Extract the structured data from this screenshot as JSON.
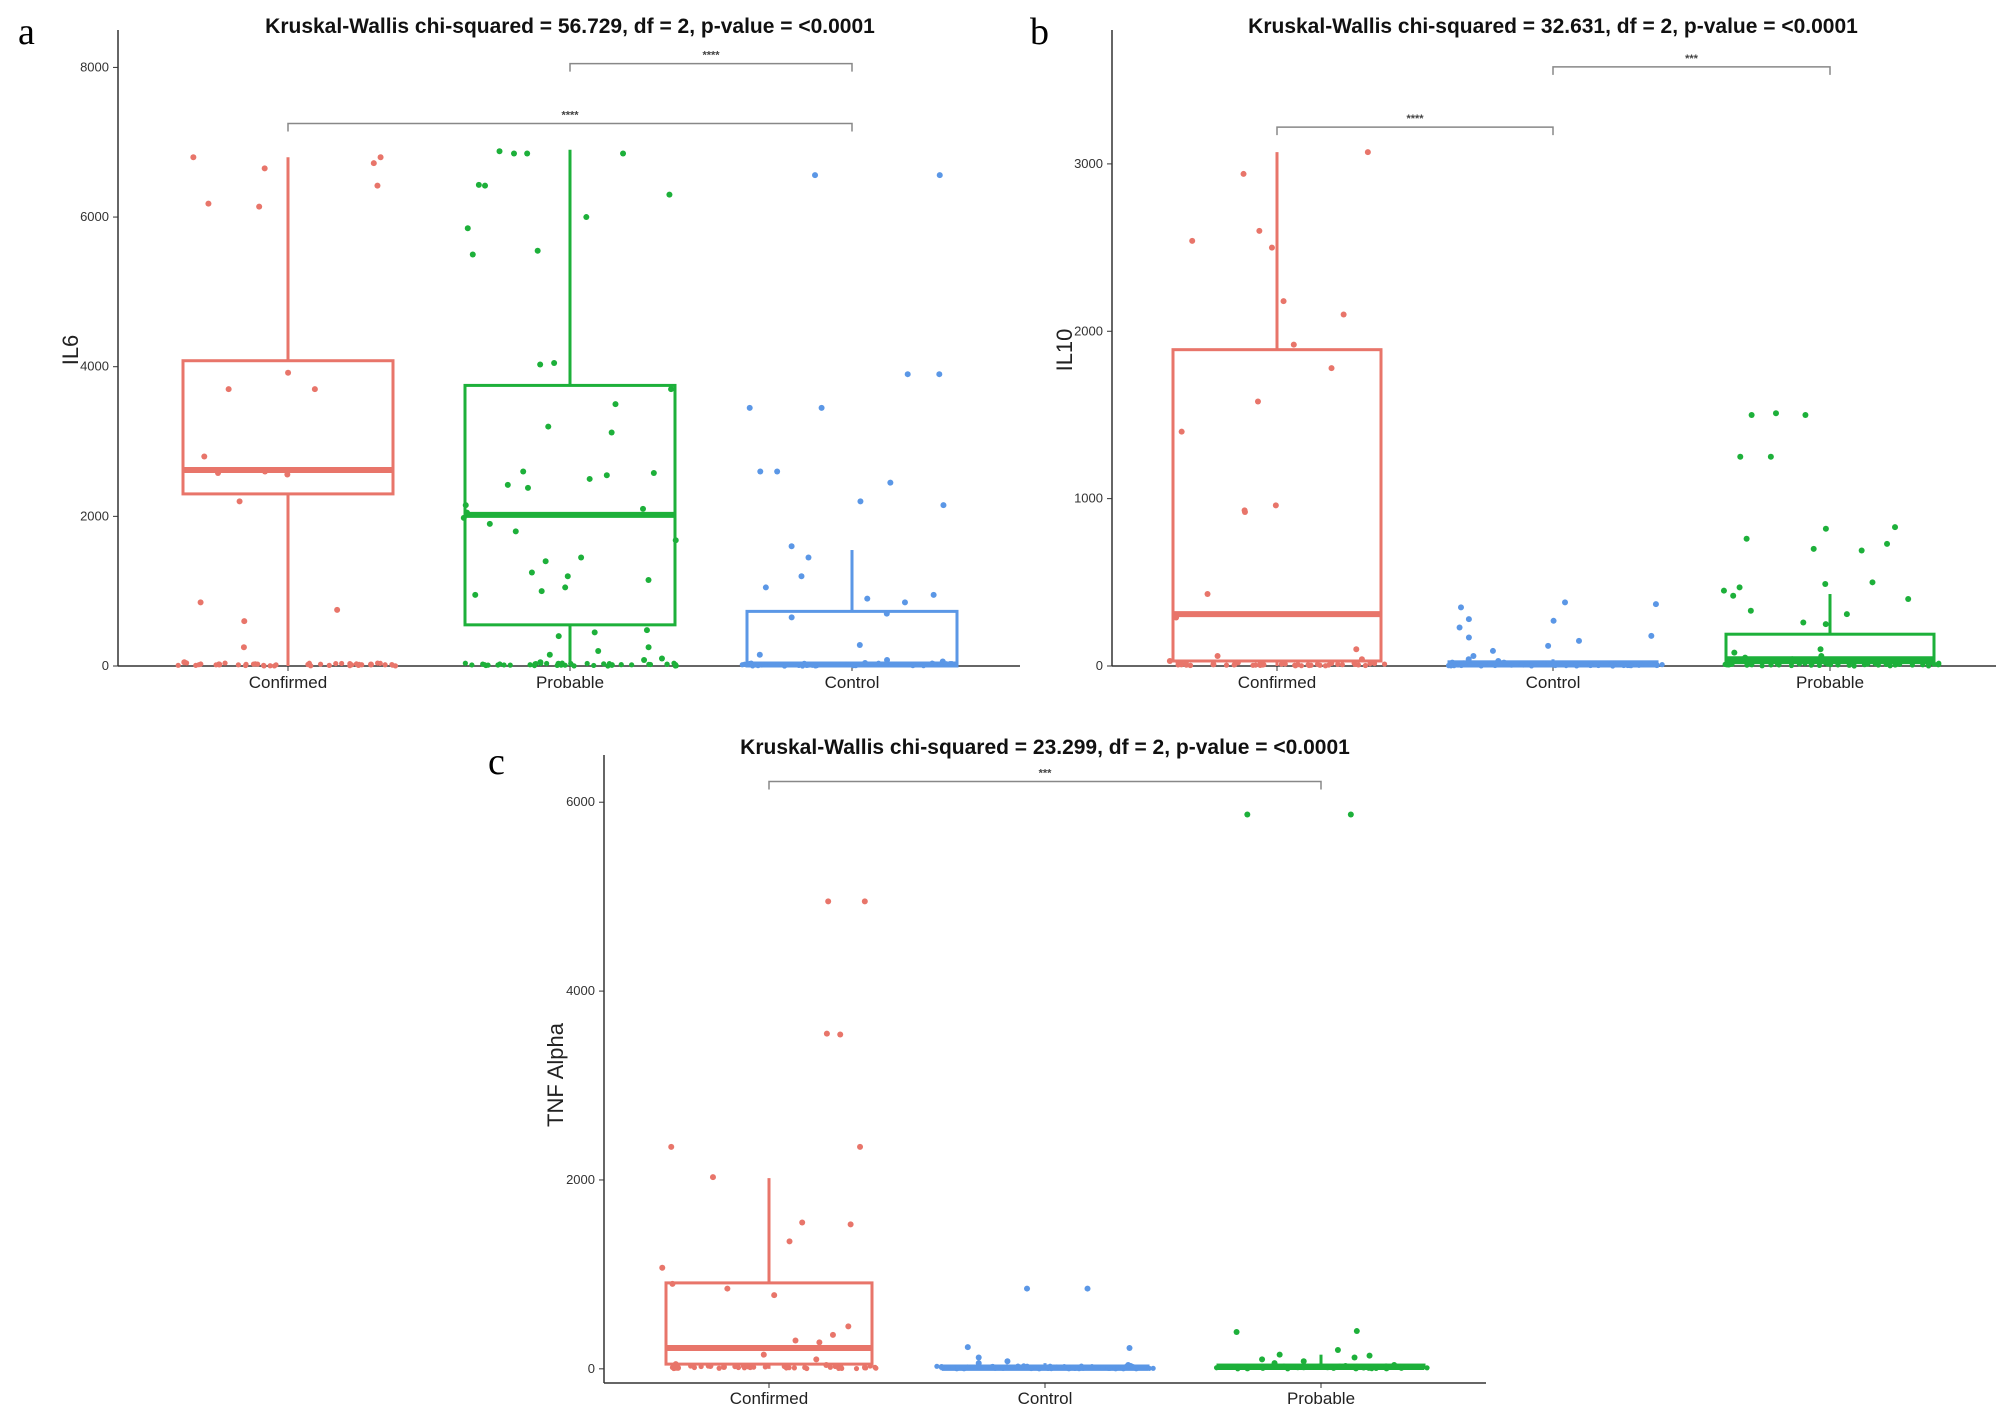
{
  "figure": {
    "panel_letters": [
      "a",
      "b",
      "c"
    ]
  },
  "colors": {
    "Confirmed": "#E8756A",
    "Probable": "#1DB03A",
    "Control": "#5B97E6",
    "axis": "#333333",
    "bracket": "#888888"
  },
  "chart_data": [
    {
      "panel": "a",
      "type": "box",
      "title": "Kruskal-Wallis chi-squared = 56.729, df = 2, p-value = <0.0001",
      "xlabel": "",
      "ylabel": "IL6",
      "ylim": [
        0,
        8500
      ],
      "yticks": [
        0,
        2000,
        4000,
        6000,
        8000
      ],
      "categories": [
        "Confirmed",
        "Probable",
        "Control"
      ],
      "boxes": [
        {
          "group": "Confirmed",
          "min": 0,
          "q1": 2300,
          "median": 2620,
          "q3": 4080,
          "max": 6800
        },
        {
          "group": "Probable",
          "min": 0,
          "q1": 550,
          "median": 2020,
          "q3": 3750,
          "max": 6900
        },
        {
          "group": "Control",
          "min": 0,
          "q1": 0,
          "median": 20,
          "q3": 730,
          "max": 1550
        }
      ],
      "points": [
        {
          "group": "Confirmed",
          "values": [
            6720,
            6800,
            6800,
            6650,
            6420,
            6180,
            6140,
            3920,
            3700,
            3700,
            2800,
            2620,
            2600,
            2580,
            2560,
            2200,
            850,
            750,
            600,
            250,
            50,
            20,
            20
          ]
        },
        {
          "group": "Probable",
          "values": [
            6850,
            6880,
            6850,
            6850,
            6430,
            6420,
            6300,
            6000,
            5850,
            5550,
            5500,
            4050,
            4030,
            3700,
            3500,
            3200,
            3120,
            2600,
            2580,
            2550,
            2500,
            2420,
            2380,
            2150,
            2100,
            2050,
            1980,
            1900,
            1800,
            1680,
            1450,
            1400,
            1250,
            1200,
            1150,
            1050,
            1000,
            950,
            480,
            450,
            400,
            250,
            200,
            150,
            100,
            80,
            50,
            30
          ]
        },
        {
          "group": "Control",
          "values": [
            6560,
            6560,
            3900,
            3900,
            3450,
            3450,
            2600,
            2600,
            2450,
            2200,
            2150,
            1600,
            1450,
            1200,
            1050,
            950,
            900,
            850,
            700,
            650,
            280,
            150,
            80,
            60,
            40,
            30,
            20,
            10,
            10,
            10,
            10,
            10
          ]
        }
      ],
      "comparisons": [
        {
          "group1": "Probable",
          "group2": "Control",
          "y": 8050,
          "label": "****"
        },
        {
          "group1": "Confirmed",
          "group2": "Control",
          "y": 7250,
          "label": "****"
        }
      ]
    },
    {
      "panel": "b",
      "type": "box",
      "title": "Kruskal-Wallis chi-squared = 32.631, df = 2, p-value = <0.0001",
      "xlabel": "",
      "ylabel": "IL10",
      "ylim": [
        0,
        3800
      ],
      "yticks": [
        0,
        1000,
        2000,
        3000
      ],
      "categories": [
        "Confirmed",
        "Control",
        "Probable"
      ],
      "boxes": [
        {
          "group": "Confirmed",
          "min": 0,
          "q1": 30,
          "median": 310,
          "q3": 1890,
          "max": 3070
        },
        {
          "group": "Control",
          "min": 0,
          "q1": 0,
          "median": 10,
          "q3": 25,
          "max": 40
        },
        {
          "group": "Probable",
          "min": 0,
          "q1": 20,
          "median": 40,
          "q3": 190,
          "max": 430
        }
      ],
      "points": [
        {
          "group": "Confirmed",
          "values": [
            3070,
            2940,
            2600,
            2540,
            2500,
            2180,
            2100,
            1920,
            1780,
            1580,
            1400,
            960,
            930,
            920,
            430,
            290,
            100,
            60,
            40,
            30,
            20,
            20,
            10,
            10
          ]
        },
        {
          "group": "Control",
          "values": [
            380,
            370,
            350,
            280,
            270,
            230,
            180,
            170,
            150,
            120,
            90,
            60,
            40,
            30,
            20,
            20,
            10,
            10,
            10,
            5,
            5,
            5,
            5,
            5,
            5,
            5,
            5,
            5
          ]
        },
        {
          "group": "Probable",
          "values": [
            1510,
            1500,
            1500,
            1250,
            1250,
            830,
            820,
            760,
            730,
            700,
            690,
            500,
            490,
            470,
            450,
            420,
            400,
            330,
            310,
            260,
            250,
            100,
            80,
            60,
            50,
            40,
            30,
            20,
            20,
            10
          ]
        }
      ],
      "comparisons": [
        {
          "group1": "Control",
          "group2": "Probable",
          "y": 3580,
          "label": "***"
        },
        {
          "group1": "Confirmed",
          "group2": "Control",
          "y": 3220,
          "label": "****"
        }
      ]
    },
    {
      "panel": "c",
      "type": "box",
      "title": "Kruskal-Wallis chi-squared = 23.299, df = 2, p-value = <0.0001",
      "xlabel": "",
      "ylabel": "TNF Alpha",
      "ylim": [
        -150,
        6500
      ],
      "yticks": [
        0,
        2000,
        4000,
        6000
      ],
      "categories": [
        "Confirmed",
        "Control",
        "Probable"
      ],
      "boxes": [
        {
          "group": "Confirmed",
          "min": 0,
          "q1": 50,
          "median": 220,
          "q3": 910,
          "max": 2020
        },
        {
          "group": "Control",
          "min": 0,
          "q1": 0,
          "median": 10,
          "q3": 30,
          "max": 60
        },
        {
          "group": "Probable",
          "min": 0,
          "q1": 10,
          "median": 20,
          "q3": 40,
          "max": 150
        }
      ],
      "points": [
        {
          "group": "Confirmed",
          "values": [
            4950,
            4950,
            3550,
            3540,
            2350,
            2350,
            2030,
            1550,
            1530,
            1350,
            1070,
            900,
            850,
            780,
            450,
            360,
            300,
            280,
            150,
            100,
            50,
            40,
            30,
            20,
            10
          ]
        },
        {
          "group": "Control",
          "values": [
            850,
            850,
            230,
            220,
            120,
            80,
            60,
            40,
            30,
            20,
            20,
            10,
            10,
            10,
            5,
            5,
            5,
            5,
            5,
            5
          ]
        },
        {
          "group": "Probable",
          "values": [
            5870,
            5870,
            400,
            390,
            200,
            150,
            140,
            120,
            100,
            80,
            60,
            40,
            30,
            20,
            20,
            10,
            10,
            5,
            5,
            5
          ]
        }
      ],
      "comparisons": [
        {
          "group1": "Confirmed",
          "group2": "Probable",
          "y": 6220,
          "label": "***"
        }
      ]
    }
  ]
}
